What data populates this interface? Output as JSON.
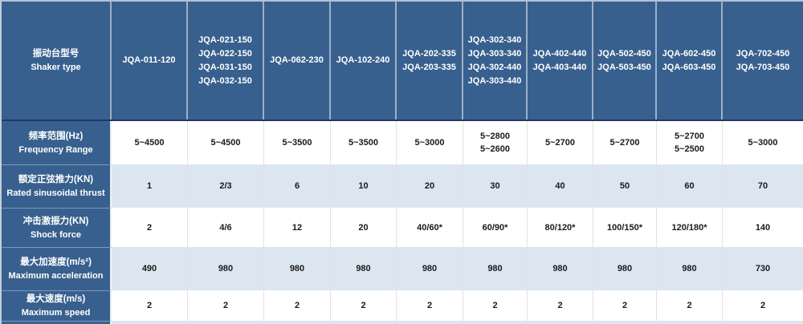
{
  "colors": {
    "header_bg": "#38608e",
    "header_text": "#ffffff",
    "divider_navy": "#1f3864",
    "row_alt_bg": "#dce6f1",
    "row_bg": "#ffffff",
    "body_grid": "#e2e2e2",
    "label_grid": "#7f98b8",
    "outer_border": "#b4c1d3",
    "data_text": "#1a1a1a"
  },
  "table": {
    "header": {
      "label_cn": "振动台型号",
      "label_en": "Shaker type",
      "columns": [
        [
          "JQA-011-120"
        ],
        [
          "JQA-021-150",
          "JQA-022-150",
          "JQA-031-150",
          "JQA-032-150"
        ],
        [
          "JQA-062-230"
        ],
        [
          "JQA-102-240"
        ],
        [
          "JQA-202-335",
          "JQA-203-335"
        ],
        [
          "JQA-302-340",
          "JQA-303-340",
          "JQA-302-440",
          "JQA-303-440"
        ],
        [
          "JQA-402-440",
          "JQA-403-440"
        ],
        [
          "JQA-502-450",
          "JQA-503-450"
        ],
        [
          "JQA-602-450",
          "JQA-603-450"
        ],
        [
          "JQA-702-450",
          "JQA-703-450"
        ]
      ]
    },
    "rows": [
      {
        "label_cn": "频率范围(Hz)",
        "label_en": "Frequency Range",
        "values": [
          [
            "5~4500"
          ],
          [
            "5~4500"
          ],
          [
            "5~3500"
          ],
          [
            "5~3500"
          ],
          [
            "5~3000"
          ],
          [
            "5~2800",
            "5~2600"
          ],
          [
            "5~2700"
          ],
          [
            "5~2700"
          ],
          [
            "5~2700",
            "5~2500"
          ],
          [
            "5~3000"
          ]
        ]
      },
      {
        "label_cn": "额定正弦推力(KN)",
        "label_en": "Rated sinusoidal thrust",
        "values": [
          [
            "1"
          ],
          [
            "2/3"
          ],
          [
            "6"
          ],
          [
            "10"
          ],
          [
            "20"
          ],
          [
            "30"
          ],
          [
            "40"
          ],
          [
            "50"
          ],
          [
            "60"
          ],
          [
            "70"
          ]
        ]
      },
      {
        "label_cn": "冲击激振力(KN)",
        "label_en": "Shock force",
        "values": [
          [
            "2"
          ],
          [
            "4/6"
          ],
          [
            "12"
          ],
          [
            "20"
          ],
          [
            "40/60*"
          ],
          [
            "60/90*"
          ],
          [
            "80/120*"
          ],
          [
            "100/150*"
          ],
          [
            "120/180*"
          ],
          [
            "140"
          ]
        ]
      },
      {
        "label_cn": "最大加速度(m/s²)",
        "label_en": "Maximum acceleration",
        "values": [
          [
            "490"
          ],
          [
            "980"
          ],
          [
            "980"
          ],
          [
            "980"
          ],
          [
            "980"
          ],
          [
            "980"
          ],
          [
            "980"
          ],
          [
            "980"
          ],
          [
            "980"
          ],
          [
            "730"
          ]
        ]
      },
      {
        "label_cn": "最大速度(m/s)",
        "label_en": "Maximum speed",
        "values": [
          [
            "2"
          ],
          [
            "2"
          ],
          [
            "2"
          ],
          [
            "2"
          ],
          [
            "2"
          ],
          [
            "2"
          ],
          [
            "2"
          ],
          [
            "2"
          ],
          [
            "2"
          ],
          [
            "2"
          ]
        ]
      }
    ]
  }
}
